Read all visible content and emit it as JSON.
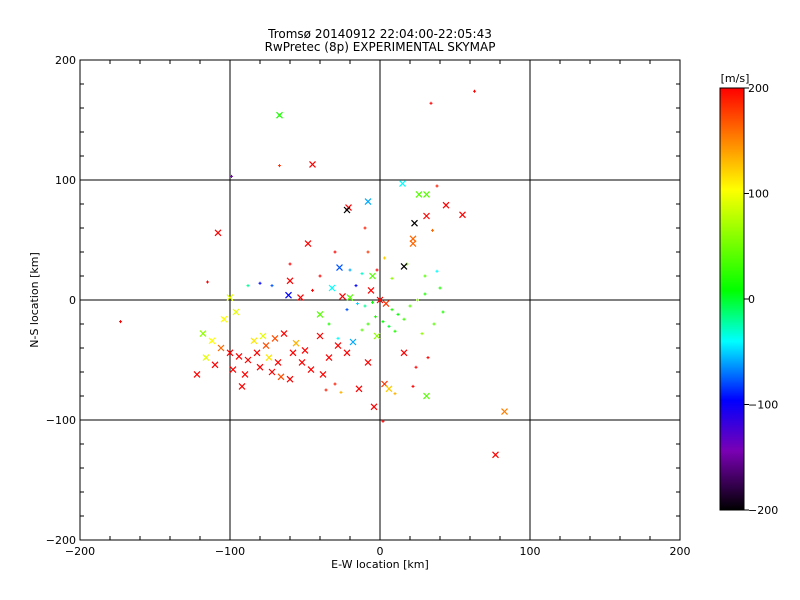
{
  "chart_data": {
    "type": "scatter",
    "title": "Tromsø 20140912 22:04:00-22:05:43",
    "subtitle": "RwPretec (8p) EXPERIMENTAL SKYMAP",
    "xlabel": "E-W location [km]",
    "ylabel": "N-S location [km]",
    "xlim": [
      -200,
      200
    ],
    "ylim": [
      -200,
      200
    ],
    "x_ticks": [
      -200,
      -100,
      0,
      100,
      200
    ],
    "y_ticks": [
      -200,
      -100,
      0,
      100,
      200
    ],
    "x_tick_labels": [
      "−200",
      "−100",
      "0",
      "100",
      "200"
    ],
    "y_tick_labels": [
      "−200",
      "−100",
      "0",
      "100",
      "200"
    ],
    "grid": true,
    "colorbar": {
      "label": "[m/s]",
      "range": [
        -200,
        200
      ],
      "ticks": [
        200,
        100,
        0,
        -100,
        -200
      ],
      "tick_labels": [
        "200",
        "100",
        "0",
        "−100",
        "−200"
      ],
      "colors": [
        "#000000",
        "#7a00b4",
        "#0000ff",
        "#00ffff",
        "#00ff00",
        "#ffff00",
        "#ff8000",
        "#ff0000"
      ]
    },
    "points": [
      {
        "x": 63,
        "y": 174,
        "v": 200,
        "m": "+"
      },
      {
        "x": 34,
        "y": 164,
        "v": 200,
        "m": "+"
      },
      {
        "x": -67,
        "y": 154,
        "v": 20,
        "m": "x"
      },
      {
        "x": -45,
        "y": 113,
        "v": 200,
        "m": "x"
      },
      {
        "x": -67,
        "y": 112,
        "v": 180,
        "m": "+"
      },
      {
        "x": -99,
        "y": 103,
        "v": -150,
        "m": "+"
      },
      {
        "x": 15,
        "y": 97,
        "v": -40,
        "m": "x"
      },
      {
        "x": 38,
        "y": 95,
        "v": 190,
        "m": "+"
      },
      {
        "x": 31,
        "y": 88,
        "v": 40,
        "m": "x"
      },
      {
        "x": 26,
        "y": 88,
        "v": 40,
        "m": "x"
      },
      {
        "x": -8,
        "y": 82,
        "v": -60,
        "m": "x"
      },
      {
        "x": 44,
        "y": 79,
        "v": 200,
        "m": "x"
      },
      {
        "x": -21,
        "y": 77,
        "v": 200,
        "m": "x"
      },
      {
        "x": -22,
        "y": 75,
        "v": -200,
        "m": "x"
      },
      {
        "x": 31,
        "y": 70,
        "v": 200,
        "m": "x"
      },
      {
        "x": 23,
        "y": 64,
        "v": -200,
        "m": "x"
      },
      {
        "x": 55,
        "y": 71,
        "v": 200,
        "m": "x"
      },
      {
        "x": -108,
        "y": 56,
        "v": 200,
        "m": "x"
      },
      {
        "x": 22,
        "y": 51,
        "v": 160,
        "m": "x"
      },
      {
        "x": -48,
        "y": 47,
        "v": 200,
        "m": "x"
      },
      {
        "x": 22,
        "y": 47,
        "v": 160,
        "m": "x"
      },
      {
        "x": 35,
        "y": 58,
        "v": 160,
        "m": "+"
      },
      {
        "x": -10,
        "y": 60,
        "v": 190,
        "m": "+"
      },
      {
        "x": 3,
        "y": 35,
        "v": 120,
        "m": "+"
      },
      {
        "x": 18,
        "y": 30,
        "v": 60,
        "m": "+"
      },
      {
        "x": 16,
        "y": 28,
        "v": -200,
        "m": "x"
      },
      {
        "x": -27,
        "y": 27,
        "v": -80,
        "m": "x"
      },
      {
        "x": -20,
        "y": 25,
        "v": -60,
        "m": "+"
      },
      {
        "x": -12,
        "y": 22,
        "v": -30,
        "m": "+"
      },
      {
        "x": -5,
        "y": 20,
        "v": 40,
        "m": "x"
      },
      {
        "x": 30,
        "y": 20,
        "v": 40,
        "m": "+"
      },
      {
        "x": 38,
        "y": 24,
        "v": -40,
        "m": "+"
      },
      {
        "x": -40,
        "y": 20,
        "v": 200,
        "m": "+"
      },
      {
        "x": -60,
        "y": 30,
        "v": 200,
        "m": "+"
      },
      {
        "x": -6,
        "y": 8,
        "v": 200,
        "m": "x"
      },
      {
        "x": -60,
        "y": 16,
        "v": 200,
        "m": "x"
      },
      {
        "x": -72,
        "y": 12,
        "v": -80,
        "m": "+"
      },
      {
        "x": -88,
        "y": 12,
        "v": -20,
        "m": "+"
      },
      {
        "x": -80,
        "y": 14,
        "v": -100,
        "m": "+"
      },
      {
        "x": -115,
        "y": 15,
        "v": 200,
        "m": "+"
      },
      {
        "x": -61,
        "y": 4,
        "v": -100,
        "m": "x"
      },
      {
        "x": -53,
        "y": 2,
        "v": 200,
        "m": "x"
      },
      {
        "x": -45,
        "y": 8,
        "v": 200,
        "m": "+"
      },
      {
        "x": -32,
        "y": 10,
        "v": -40,
        "m": "x"
      },
      {
        "x": -25,
        "y": 3,
        "v": 200,
        "m": "x"
      },
      {
        "x": -20,
        "y": 2,
        "v": 40,
        "m": "x"
      },
      {
        "x": -15,
        "y": -3,
        "v": -50,
        "m": "+"
      },
      {
        "x": -10,
        "y": -5,
        "v": -20,
        "m": "+"
      },
      {
        "x": -5,
        "y": -2,
        "v": 10,
        "m": "+"
      },
      {
        "x": 0,
        "y": 0,
        "v": 200,
        "m": "x"
      },
      {
        "x": 4,
        "y": -3,
        "v": 180,
        "m": "x"
      },
      {
        "x": 8,
        "y": -8,
        "v": 20,
        "m": "+"
      },
      {
        "x": 12,
        "y": -12,
        "v": 10,
        "m": "+"
      },
      {
        "x": 16,
        "y": -16,
        "v": 30,
        "m": "+"
      },
      {
        "x": 20,
        "y": -5,
        "v": 40,
        "m": "+"
      },
      {
        "x": 25,
        "y": 0,
        "v": 60,
        "m": "+"
      },
      {
        "x": 30,
        "y": 5,
        "v": 20,
        "m": "+"
      },
      {
        "x": -3,
        "y": -14,
        "v": 20,
        "m": "+"
      },
      {
        "x": 2,
        "y": -18,
        "v": 10,
        "m": "+"
      },
      {
        "x": 6,
        "y": -22,
        "v": 0,
        "m": "+"
      },
      {
        "x": 10,
        "y": -26,
        "v": 20,
        "m": "+"
      },
      {
        "x": -8,
        "y": -20,
        "v": 30,
        "m": "+"
      },
      {
        "x": -12,
        "y": -25,
        "v": 40,
        "m": "+"
      },
      {
        "x": -2,
        "y": -30,
        "v": 60,
        "m": "x"
      },
      {
        "x": -100,
        "y": 2,
        "v": 90,
        "m": "x"
      },
      {
        "x": -96,
        "y": -10,
        "v": 90,
        "m": "x"
      },
      {
        "x": -104,
        "y": -16,
        "v": 100,
        "m": "x"
      },
      {
        "x": -118,
        "y": -28,
        "v": 60,
        "m": "x"
      },
      {
        "x": -112,
        "y": -34,
        "v": 100,
        "m": "x"
      },
      {
        "x": -106,
        "y": -40,
        "v": 160,
        "m": "x"
      },
      {
        "x": -100,
        "y": -44,
        "v": 200,
        "m": "x"
      },
      {
        "x": -94,
        "y": -47,
        "v": 200,
        "m": "x"
      },
      {
        "x": -88,
        "y": -50,
        "v": 200,
        "m": "x"
      },
      {
        "x": -82,
        "y": -44,
        "v": 200,
        "m": "x"
      },
      {
        "x": -76,
        "y": -38,
        "v": 170,
        "m": "x"
      },
      {
        "x": -70,
        "y": -32,
        "v": 170,
        "m": "x"
      },
      {
        "x": -64,
        "y": -28,
        "v": 200,
        "m": "x"
      },
      {
        "x": -58,
        "y": -44,
        "v": 200,
        "m": "x"
      },
      {
        "x": -52,
        "y": -52,
        "v": 200,
        "m": "x"
      },
      {
        "x": -46,
        "y": -58,
        "v": 200,
        "m": "x"
      },
      {
        "x": -110,
        "y": -54,
        "v": 200,
        "m": "x"
      },
      {
        "x": -98,
        "y": -58,
        "v": 200,
        "m": "x"
      },
      {
        "x": -90,
        "y": -62,
        "v": 200,
        "m": "x"
      },
      {
        "x": -80,
        "y": -56,
        "v": 200,
        "m": "x"
      },
      {
        "x": -72,
        "y": -60,
        "v": 200,
        "m": "x"
      },
      {
        "x": -66,
        "y": -64,
        "v": 170,
        "m": "x"
      },
      {
        "x": -60,
        "y": -66,
        "v": 200,
        "m": "x"
      },
      {
        "x": -92,
        "y": -72,
        "v": 200,
        "m": "x"
      },
      {
        "x": -84,
        "y": -34,
        "v": 110,
        "m": "x"
      },
      {
        "x": -78,
        "y": -30,
        "v": 90,
        "m": "x"
      },
      {
        "x": -74,
        "y": -48,
        "v": 110,
        "m": "x"
      },
      {
        "x": -68,
        "y": -52,
        "v": 200,
        "m": "x"
      },
      {
        "x": -56,
        "y": -36,
        "v": 130,
        "m": "x"
      },
      {
        "x": -50,
        "y": -42,
        "v": 200,
        "m": "x"
      },
      {
        "x": -122,
        "y": -62,
        "v": 200,
        "m": "x"
      },
      {
        "x": -116,
        "y": -48,
        "v": 90,
        "m": "x"
      },
      {
        "x": -40,
        "y": -30,
        "v": 200,
        "m": "x"
      },
      {
        "x": -34,
        "y": -48,
        "v": 200,
        "m": "x"
      },
      {
        "x": -28,
        "y": -38,
        "v": 200,
        "m": "x"
      },
      {
        "x": -22,
        "y": -44,
        "v": 200,
        "m": "x"
      },
      {
        "x": -38,
        "y": -62,
        "v": 200,
        "m": "x"
      },
      {
        "x": -30,
        "y": -70,
        "v": 190,
        "m": "+"
      },
      {
        "x": -36,
        "y": -75,
        "v": 190,
        "m": "+"
      },
      {
        "x": -26,
        "y": -77,
        "v": 130,
        "m": "+"
      },
      {
        "x": -14,
        "y": -74,
        "v": 200,
        "m": "x"
      },
      {
        "x": -8,
        "y": -52,
        "v": 200,
        "m": "x"
      },
      {
        "x": 3,
        "y": -70,
        "v": 180,
        "m": "x"
      },
      {
        "x": 6,
        "y": -74,
        "v": 120,
        "m": "x"
      },
      {
        "x": 10,
        "y": -78,
        "v": 130,
        "m": "+"
      },
      {
        "x": 22,
        "y": -72,
        "v": 200,
        "m": "+"
      },
      {
        "x": 24,
        "y": -56,
        "v": 200,
        "m": "+"
      },
      {
        "x": 16,
        "y": -44,
        "v": 200,
        "m": "x"
      },
      {
        "x": 32,
        "y": -48,
        "v": 200,
        "m": "+"
      },
      {
        "x": 31,
        "y": -80,
        "v": 40,
        "m": "x"
      },
      {
        "x": -4,
        "y": -89,
        "v": 200,
        "m": "x"
      },
      {
        "x": 2,
        "y": -101,
        "v": 200,
        "m": "+"
      },
      {
        "x": 83,
        "y": -93,
        "v": 150,
        "m": "x"
      },
      {
        "x": 77,
        "y": -129,
        "v": 200,
        "m": "x"
      },
      {
        "x": -173,
        "y": -18,
        "v": 200,
        "m": "+"
      },
      {
        "x": -18,
        "y": -35,
        "v": -60,
        "m": "x"
      },
      {
        "x": -28,
        "y": -32,
        "v": -40,
        "m": "+"
      },
      {
        "x": -34,
        "y": -20,
        "v": 20,
        "m": "+"
      },
      {
        "x": -40,
        "y": -12,
        "v": 40,
        "m": "x"
      },
      {
        "x": 40,
        "y": 10,
        "v": 20,
        "m": "+"
      },
      {
        "x": 42,
        "y": -10,
        "v": 20,
        "m": "+"
      },
      {
        "x": 36,
        "y": -20,
        "v": 40,
        "m": "+"
      },
      {
        "x": 28,
        "y": -28,
        "v": 60,
        "m": "+"
      },
      {
        "x": -16,
        "y": 12,
        "v": -100,
        "m": "+"
      },
      {
        "x": -22,
        "y": -8,
        "v": -80,
        "m": "+"
      },
      {
        "x": -2,
        "y": 25,
        "v": 200,
        "m": "+"
      },
      {
        "x": 8,
        "y": 18,
        "v": 60,
        "m": "+"
      },
      {
        "x": -30,
        "y": 40,
        "v": 200,
        "m": "+"
      },
      {
        "x": -8,
        "y": 40,
        "v": 180,
        "m": "+"
      }
    ]
  }
}
